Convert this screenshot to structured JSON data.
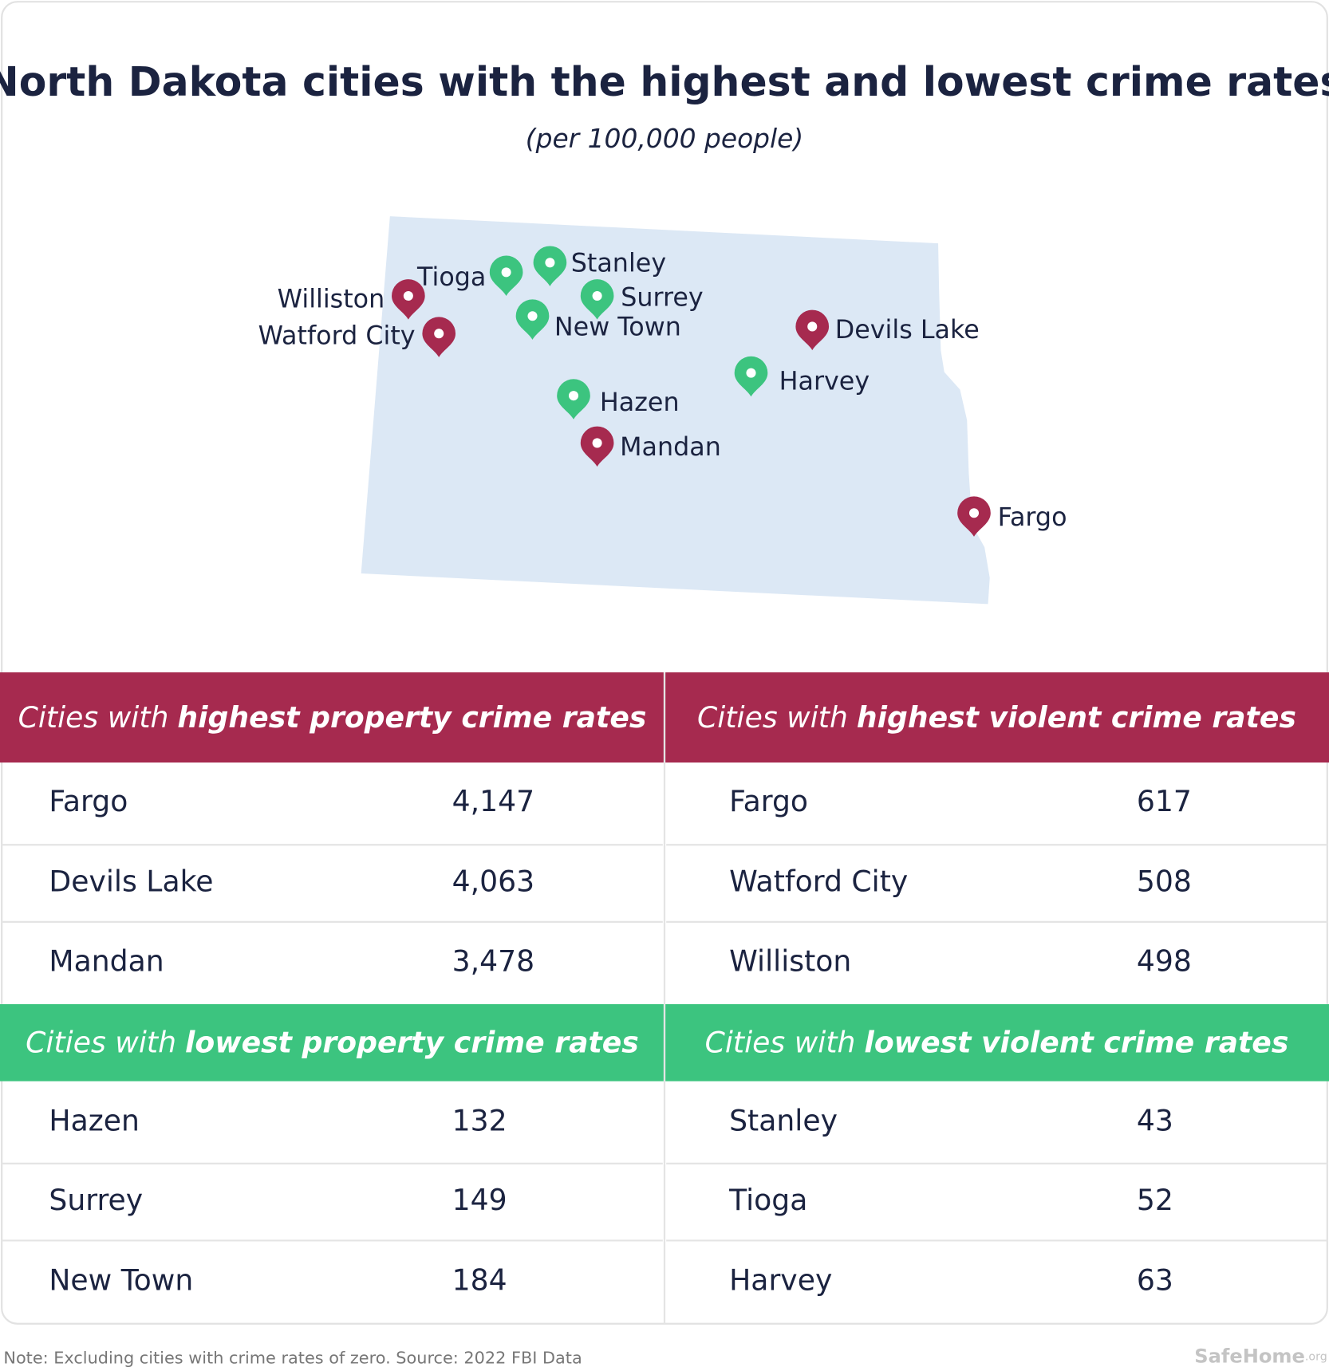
{
  "title": "North Dakota cities with the highest and lowest crime rates",
  "subtitle": "(per 100,000 people)",
  "map": {
    "fill": "#dce8f5",
    "cities": [
      {
        "name": "Williston",
        "color": "#a62a4f"
      },
      {
        "name": "Watford City",
        "color": "#a62a4f"
      },
      {
        "name": "Tioga",
        "color": "#3cc47f"
      },
      {
        "name": "Stanley",
        "color": "#3cc47f"
      },
      {
        "name": "Surrey",
        "color": "#3cc47f"
      },
      {
        "name": "New Town",
        "color": "#3cc47f"
      },
      {
        "name": "Devils Lake",
        "color": "#a62a4f"
      },
      {
        "name": "Harvey",
        "color": "#3cc47f"
      },
      {
        "name": "Hazen",
        "color": "#3cc47f"
      },
      {
        "name": "Mandan",
        "color": "#a62a4f"
      },
      {
        "name": "Fargo",
        "color": "#a62a4f"
      }
    ]
  },
  "tables": [
    {
      "color": "#a62a4f",
      "header_plain": "Cities with",
      "header_bold": "highest property crime rates",
      "rows": [
        [
          "Fargo",
          "4,147"
        ],
        [
          "Devils Lake",
          "4,063"
        ],
        [
          "Mandan",
          "3,478"
        ]
      ]
    },
    {
      "color": "#a62a4f",
      "header_plain": "Cities with",
      "header_bold": "highest violent crime rates",
      "rows": [
        [
          "Fargo",
          "617"
        ],
        [
          "Watford City",
          "508"
        ],
        [
          "Williston",
          "498"
        ]
      ]
    },
    {
      "color": "#3cc47f",
      "header_plain": "Cities with",
      "header_bold": "lowest property crime rates",
      "rows": [
        [
          "Hazen",
          "132"
        ],
        [
          "Surrey",
          "149"
        ],
        [
          "New Town",
          "184"
        ]
      ]
    },
    {
      "color": "#3cc47f",
      "header_plain": "Cities with",
      "header_bold": "lowest violent crime rates",
      "rows": [
        [
          "Stanley",
          "43"
        ],
        [
          "Tioga",
          "52"
        ],
        [
          "Harvey",
          "63"
        ]
      ]
    }
  ],
  "footer": {
    "note": "Note: Excluding cities with crime rates of zero. Source: 2022 FBI Data",
    "logo": "SafeHome",
    "logo_suffix": ".org"
  }
}
